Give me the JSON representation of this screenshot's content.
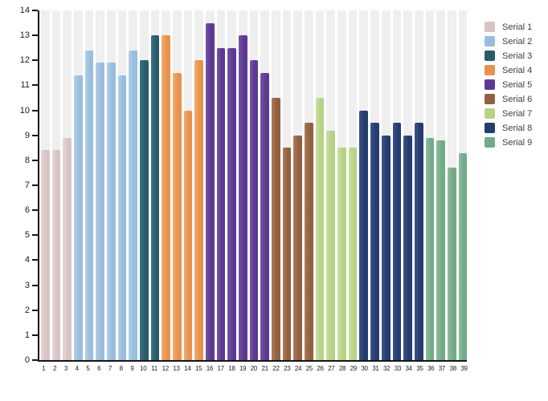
{
  "chart_data": {
    "type": "bar",
    "title": "",
    "xlabel": "",
    "ylabel": "",
    "ylim": [
      0,
      14
    ],
    "ytick_step": 1,
    "grid": "none",
    "plot_background_stripes": true,
    "stripe_color": "#efeff0",
    "axis_color": "#161616",
    "legend_position": "right",
    "categories": [
      "1",
      "2",
      "3",
      "4",
      "5",
      "6",
      "7",
      "8",
      "9",
      "10",
      "11",
      "12",
      "13",
      "14",
      "15",
      "16",
      "17",
      "18",
      "19",
      "20",
      "21",
      "22",
      "23",
      "24",
      "25",
      "26",
      "27",
      "28",
      "29",
      "30",
      "31",
      "32",
      "33",
      "34",
      "35",
      "36",
      "37",
      "38",
      "39"
    ],
    "series": [
      {
        "name": "Serial 1",
        "color": "#d9c3c4",
        "color_light": "#e6d6d6",
        "x_start": 1,
        "values": [
          8.4,
          8.4,
          8.9
        ]
      },
      {
        "name": "Serial 2",
        "color": "#99bddc",
        "color_light": "#b3cfe7",
        "x_start": 4,
        "values": [
          11.4,
          12.4,
          11.9,
          11.9,
          11.4,
          12.4
        ]
      },
      {
        "name": "Serial 3",
        "color": "#275d69",
        "color_light": "#3d7584",
        "x_start": 10,
        "values": [
          12.0,
          13.0
        ]
      },
      {
        "name": "Serial 4",
        "color": "#e8924e",
        "color_light": "#f0ad71",
        "x_start": 12,
        "values": [
          13.0,
          11.5,
          10.0,
          12.0
        ]
      },
      {
        "name": "Serial 5",
        "color": "#5d3a91",
        "color_light": "#7554a6",
        "x_start": 16,
        "values": [
          13.5,
          12.5,
          12.5,
          13.0,
          12.0,
          11.5
        ]
      },
      {
        "name": "Serial 6",
        "color": "#92603f",
        "color_light": "#aa7b5a",
        "x_start": 22,
        "values": [
          10.5,
          8.5,
          9.0,
          9.5
        ]
      },
      {
        "name": "Serial 7",
        "color": "#b6d385",
        "color_light": "#c9dfa3",
        "x_start": 26,
        "values": [
          10.5,
          9.2,
          8.5,
          8.5
        ]
      },
      {
        "name": "Serial 8",
        "color": "#253c6e",
        "color_light": "#3b548a",
        "x_start": 30,
        "values": [
          10.0,
          9.5,
          9.0,
          9.5,
          9.0,
          9.5
        ]
      },
      {
        "name": "Serial 9",
        "color": "#73aa87",
        "color_light": "#8fbe9f",
        "x_start": 36,
        "values": [
          8.9,
          8.8,
          7.7,
          8.3
        ]
      }
    ]
  },
  "legend": {
    "items": [
      {
        "label": "Serial 1"
      },
      {
        "label": "Serial 2"
      },
      {
        "label": "Serial 3"
      },
      {
        "label": "Serial 4"
      },
      {
        "label": "Serial 5"
      },
      {
        "label": "Serial 6"
      },
      {
        "label": "Serial 7"
      },
      {
        "label": "Serial 8"
      },
      {
        "label": "Serial 9"
      }
    ]
  },
  "y_axis": {
    "tick_labels": [
      "0",
      "1",
      "2",
      "3",
      "4",
      "5",
      "6",
      "7",
      "8",
      "9",
      "10",
      "11",
      "12",
      "13",
      "14"
    ]
  }
}
